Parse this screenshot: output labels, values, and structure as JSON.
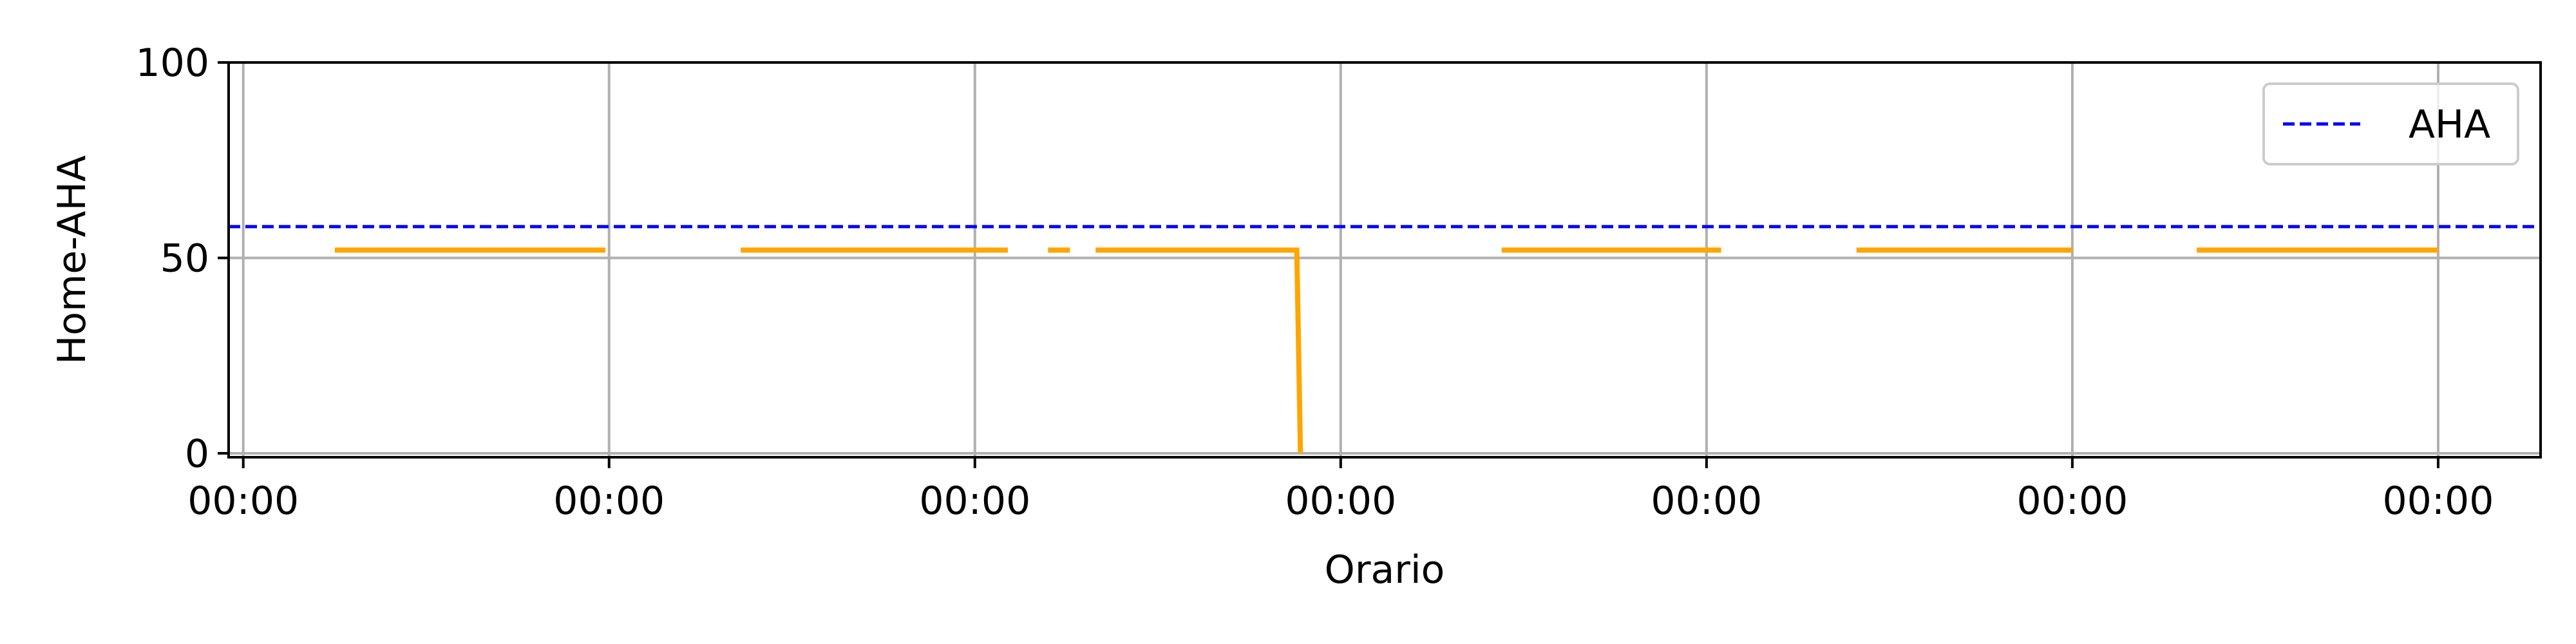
{
  "chart_data": {
    "type": "line",
    "title": "",
    "xlabel": "Orario",
    "ylabel": "Home-AHA",
    "x_unit": "day",
    "x_ticks": [
      0,
      1,
      2,
      3,
      4,
      5,
      6
    ],
    "x_tick_labels": [
      "00:00",
      "00:00",
      "00:00",
      "00:00",
      "00:00",
      "00:00",
      "00:00"
    ],
    "y_ticks": [
      0,
      50,
      100
    ],
    "y_tick_labels": [
      "0",
      "50",
      "100"
    ],
    "xlim": [
      -0.04,
      6.28
    ],
    "ylim": [
      -1,
      100
    ],
    "grid": true,
    "legend": {
      "position": "top-right",
      "entries": [
        "AHA"
      ]
    },
    "series": [
      {
        "name": "",
        "style": "solid",
        "color": "#FFA500",
        "segments": [
          [
            [
              0.25,
              52
            ],
            [
              0.99,
              52
            ]
          ],
          [
            [
              1.36,
              52
            ],
            [
              2.09,
              52
            ]
          ],
          [
            [
              2.2,
              52
            ],
            [
              2.26,
              52
            ]
          ],
          [
            [
              2.33,
              52
            ],
            [
              2.88,
              52
            ],
            [
              2.89,
              0
            ]
          ],
          [
            [
              3.44,
              52
            ],
            [
              4.04,
              52
            ]
          ],
          [
            [
              4.41,
              52
            ],
            [
              5.0,
              52
            ]
          ],
          [
            [
              5.34,
              52
            ],
            [
              6.0,
              52
            ]
          ]
        ]
      },
      {
        "name": "AHA",
        "style": "dashed",
        "color": "#0000FF",
        "constant": 58
      }
    ]
  }
}
